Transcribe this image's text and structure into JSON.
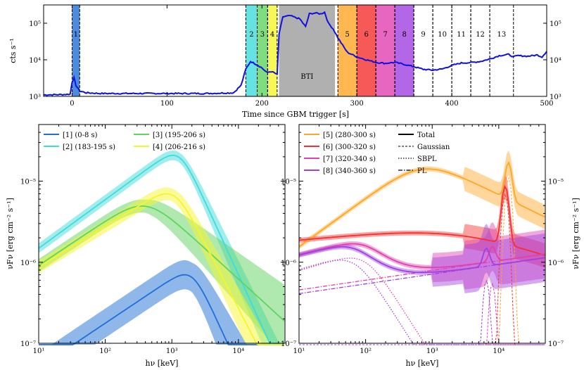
{
  "chart_data": [
    {
      "type": "line",
      "name": "light-curve",
      "xlabel": "Time since GBM trigger [s]",
      "ylabel": "cts s⁻¹",
      "xlim": [
        -30,
        500
      ],
      "ylim_log10": [
        3,
        5.5
      ],
      "xticks": [
        "0",
        "100",
        "200",
        "300",
        "400",
        "500"
      ],
      "yticks": [
        "10³",
        "10⁴",
        "10⁵"
      ],
      "bti_label": "BTI",
      "bti_range": [
        218,
        277
      ],
      "intervals": [
        {
          "label": "1",
          "start": 0,
          "end": 8,
          "color": "#1f6fd6"
        },
        {
          "label": "2",
          "start": 183,
          "end": 195,
          "color": "#3fdcdc"
        },
        {
          "label": "3",
          "start": 195,
          "end": 206,
          "color": "#5fd45f"
        },
        {
          "label": "4",
          "start": 206,
          "end": 216,
          "color": "#f5f52e"
        },
        {
          "label": "5",
          "start": 280,
          "end": 300,
          "color": "#ffa626"
        },
        {
          "label": "6",
          "start": 300,
          "end": 320,
          "color": "#f53030"
        },
        {
          "label": "7",
          "start": 320,
          "end": 340,
          "color": "#e040b0"
        },
        {
          "label": "8",
          "start": 340,
          "end": 360,
          "color": "#a040e0"
        },
        {
          "label": "9",
          "start": 360,
          "end": 380,
          "color": "none"
        },
        {
          "label": "10",
          "start": 380,
          "end": 400,
          "color": "none"
        },
        {
          "label": "11",
          "start": 400,
          "end": 420,
          "color": "none"
        },
        {
          "label": "12",
          "start": 420,
          "end": 440,
          "color": "none"
        },
        {
          "label": "13",
          "start": 440,
          "end": 465,
          "color": "none"
        }
      ],
      "series": [
        {
          "name": "rate",
          "color": "#1010e0",
          "x": [
            -30,
            -10,
            -2,
            0,
            2,
            4,
            8,
            15,
            30,
            60,
            100,
            140,
            170,
            178,
            183,
            188,
            192,
            196,
            200,
            205,
            210,
            216,
            218,
            222,
            230,
            240,
            246,
            250,
            256,
            262,
            266,
            270,
            275,
            280,
            285,
            290,
            300,
            310,
            320,
            330,
            340,
            350,
            360,
            370,
            380,
            390,
            400,
            410,
            420,
            430,
            440,
            450,
            460,
            465,
            470,
            480,
            490,
            495,
            500
          ],
          "y": [
            1100,
            1120,
            1150,
            2500,
            3200,
            2000,
            1400,
            1250,
            1200,
            1200,
            1200,
            1200,
            1250,
            2000,
            5500,
            9000,
            8000,
            7000,
            6000,
            4500,
            4800,
            4000,
            50000,
            150000,
            160000,
            130000,
            80000,
            180000,
            190000,
            180000,
            200000,
            100000,
            70000,
            40000,
            25000,
            16000,
            12000,
            10000,
            8500,
            8000,
            8500,
            7500,
            6500,
            5500,
            5200,
            5600,
            7000,
            8200,
            8400,
            9000,
            10500,
            13000,
            14000,
            12000,
            13000,
            12500,
            13500,
            12000,
            17000
          ]
        }
      ]
    },
    {
      "type": "line",
      "name": "spectra-left",
      "xlabel": "hν [keV]",
      "ylabel": "νFν [erg cm⁻² s⁻¹]",
      "xlim": [
        10,
        50000
      ],
      "ylim": [
        1e-07,
        5e-05
      ],
      "xticks": [
        "10¹",
        "10²",
        "10³",
        "10⁴"
      ],
      "yticks": [
        "10⁻⁷",
        "10⁻⁶",
        "10⁻⁵"
      ],
      "series": [
        {
          "name": "[1] (0-8 s)",
          "color": "#1f6fd6",
          "epeak_kev": 2000,
          "peak": 6.5e-07,
          "alpha": 0.55,
          "beta": -1.8,
          "band": 0.18
        },
        {
          "name": "[2] (183-195 s)",
          "color": "#3fdcdc",
          "epeak_kev": 1300,
          "peak": 1.95e-05,
          "alpha": 0.6,
          "beta": -1.8,
          "band": 0.06
        },
        {
          "name": "[3] (195-206 s)",
          "color": "#5fd45f",
          "epeak_kev": 400,
          "peak": 4.9e-06,
          "alpha": 0.55,
          "beta": -0.75,
          "band": 0.08
        },
        {
          "name": "[4] (206-216 s)",
          "color": "#f5f52e",
          "epeak_kev": 1100,
          "peak": 6.5e-06,
          "alpha": 0.5,
          "beta": -1.6,
          "band": 0.08
        }
      ]
    },
    {
      "type": "line",
      "name": "spectra-right",
      "xlabel": "hν [keV]",
      "ylabel": "νFν [erg cm⁻² s⁻¹]",
      "xlim": [
        10,
        50000
      ],
      "ylim": [
        1e-07,
        5e-05
      ],
      "xticks": [
        "10¹",
        "10²",
        "10³",
        "10⁴"
      ],
      "yticks": [
        "10⁻⁷",
        "10⁻⁶",
        "10⁻⁵"
      ],
      "legend_styles": [
        "Total",
        "Gaussian",
        "SBPL",
        "PL"
      ],
      "series": [
        {
          "name": "[5] (280-300 s)",
          "color": "#ffa626",
          "epeak_kev": 700,
          "peak": 1.4e-05,
          "line_kev": 14000,
          "line_peak": 1.1e-05
        },
        {
          "name": "[6] (300-320 s)",
          "color": "#f53030",
          "epeak_kev": 3000,
          "peak": 2.1e-06,
          "line_kev": 12500,
          "line_peak": 7e-06
        },
        {
          "name": "[7] (320-340 s)",
          "color": "#e040b0",
          "epeak_kev": 100,
          "peak": 1.8e-06,
          "line_kev": 8000,
          "line_peak": 5.5e-07
        },
        {
          "name": "[8] (340-360 s)",
          "color": "#a040e0",
          "epeak_kev": 70,
          "peak": 1.7e-06,
          "line_kev": 6500,
          "line_peak": 6e-07
        }
      ]
    }
  ]
}
